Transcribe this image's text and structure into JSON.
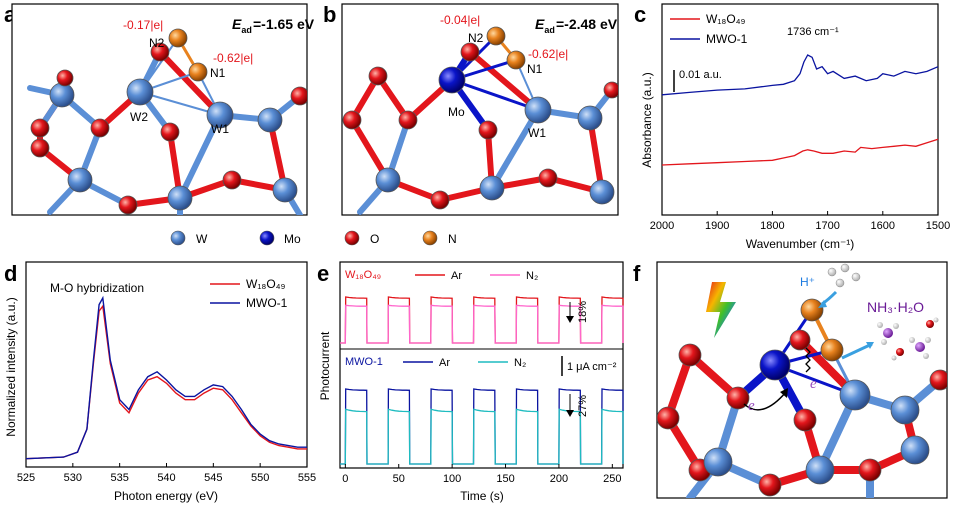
{
  "panels": {
    "a": {
      "letter": "a",
      "ead": "=-1.65 eV",
      "charge_n2": "-0.17|e|",
      "charge_n1": "-0.62|e|",
      "labels": {
        "n2": "N2",
        "n1": "N1",
        "w2": "W2",
        "w1": "W1"
      }
    },
    "b": {
      "letter": "b",
      "ead": "=-2.48 eV",
      "charge_n2": "-0.04|e|",
      "charge_n1": "-0.62|e|",
      "labels": {
        "n2": "N2",
        "n1": "N1",
        "mo": "Mo",
        "w1": "W1"
      }
    },
    "f": {
      "letter": "f",
      "h_plus": "H⁺",
      "nh3": "NH₃·H₂O",
      "e1": "e",
      "e2": "e"
    }
  },
  "atom_legend": [
    {
      "label": "W",
      "color": "#5b8fd6"
    },
    {
      "label": "Mo",
      "color": "#0a14c8"
    },
    {
      "label": "O",
      "color": "#e3161c"
    },
    {
      "label": "N",
      "color": "#e8821e"
    }
  ],
  "chart_data": [
    {
      "panel": "c",
      "letter": "c",
      "type": "line",
      "xlabel": "Wavenumber (cm⁻¹)",
      "ylabel": "Absorbance (a.u.)",
      "xlim": [
        2000,
        1500
      ],
      "x_ticks": [
        "2000",
        "1900",
        "1800",
        "1700",
        "1600",
        "1500"
      ],
      "annotation": "1736 cm⁻¹",
      "scale_bar": "0.01 a.u.",
      "legend": [
        "W₁₈O₄₉",
        "MWO-1"
      ],
      "series": [
        {
          "name": "W₁₈O₄₉",
          "color": "#e3161c",
          "x": [
            2000,
            1950,
            1900,
            1850,
            1800,
            1780,
            1760,
            1745,
            1736,
            1725,
            1710,
            1690,
            1670,
            1650,
            1640,
            1620,
            1600,
            1580,
            1560,
            1540,
            1520,
            1500
          ],
          "y": [
            0.0,
            0.0005,
            0.001,
            0.0015,
            0.002,
            0.003,
            0.004,
            0.006,
            0.0065,
            0.006,
            0.005,
            0.005,
            0.006,
            0.0055,
            0.0075,
            0.007,
            0.0075,
            0.008,
            0.0085,
            0.008,
            0.0095,
            0.011
          ]
        },
        {
          "name": "MWO-1",
          "color": "#0a14a0",
          "x": [
            2000,
            1950,
            1900,
            1850,
            1800,
            1780,
            1760,
            1750,
            1743,
            1736,
            1728,
            1720,
            1710,
            1700,
            1690,
            1670,
            1650,
            1630,
            1610,
            1600,
            1580,
            1560,
            1540,
            1520,
            1500
          ],
          "y": [
            0.03,
            0.031,
            0.032,
            0.0325,
            0.034,
            0.0345,
            0.036,
            0.039,
            0.044,
            0.047,
            0.046,
            0.041,
            0.042,
            0.039,
            0.04,
            0.037,
            0.038,
            0.036,
            0.037,
            0.039,
            0.038,
            0.04,
            0.039,
            0.04,
            0.042
          ]
        }
      ]
    },
    {
      "panel": "d",
      "letter": "d",
      "type": "line",
      "xlabel": "Photon energy (eV)",
      "ylabel": "Normalized intensity (a.u.)",
      "xlim": [
        525,
        555
      ],
      "x_ticks": [
        "525",
        "530",
        "535",
        "540",
        "545",
        "550",
        "555"
      ],
      "annotation": "M-O hybridization",
      "legend": [
        "W₁₈O₄₉",
        "MWO-1"
      ],
      "series": [
        {
          "name": "W₁₈O₄₉",
          "color": "#e3161c",
          "x": [
            525,
            529,
            530.5,
            531.5,
            532.2,
            532.8,
            533.2,
            534,
            535,
            536,
            537,
            538,
            539,
            540,
            541,
            542,
            543,
            544,
            545,
            546,
            547,
            548,
            549,
            550,
            551,
            552,
            553,
            554,
            555
          ],
          "y": [
            0.02,
            0.03,
            0.06,
            0.2,
            0.6,
            0.92,
            0.95,
            0.6,
            0.36,
            0.3,
            0.42,
            0.5,
            0.52,
            0.48,
            0.42,
            0.38,
            0.38,
            0.42,
            0.45,
            0.44,
            0.38,
            0.3,
            0.22,
            0.16,
            0.12,
            0.1,
            0.09,
            0.08,
            0.08
          ]
        },
        {
          "name": "MWO-1",
          "color": "#0a14a0",
          "x": [
            525,
            529,
            530.5,
            531.5,
            532.2,
            532.8,
            533.2,
            534,
            535,
            536,
            537,
            538,
            539,
            540,
            541,
            542,
            543,
            544,
            545,
            546,
            547,
            548,
            549,
            550,
            551,
            552,
            553,
            554,
            555
          ],
          "y": [
            0.02,
            0.03,
            0.06,
            0.2,
            0.62,
            0.96,
            1.0,
            0.62,
            0.38,
            0.32,
            0.44,
            0.52,
            0.55,
            0.5,
            0.44,
            0.4,
            0.4,
            0.44,
            0.47,
            0.46,
            0.4,
            0.32,
            0.23,
            0.17,
            0.13,
            0.11,
            0.1,
            0.09,
            0.09
          ]
        }
      ]
    },
    {
      "panel": "e",
      "letter": "e",
      "type": "line",
      "xlabel": "Time (s)",
      "ylabel": "Photocurrent",
      "xlim": [
        -5,
        260
      ],
      "x_ticks": [
        "0",
        "50",
        "100",
        "150",
        "200",
        "250"
      ],
      "scale_bar": "1 μA cm⁻²",
      "subpanels": [
        {
          "label": "W₁₈O₄₉",
          "label_color": "#e3161c",
          "drop": "18%",
          "series": [
            {
              "name": "Ar",
              "color": "#e3161c",
              "on_level": 1.0,
              "off_level": 0.0,
              "decay_to": 0.82
            },
            {
              "name": "N₂",
              "color": "#ff66cc",
              "on_level": 0.82,
              "off_level": 0.0,
              "decay_to": 0.82
            }
          ]
        },
        {
          "label": "MWO-1",
          "label_color": "#0a14a0",
          "drop": "27%",
          "series": [
            {
              "name": "Ar",
              "color": "#0a14a0",
              "on_level": 1.0,
              "off_level": 0.0,
              "decay_to": 0.88
            },
            {
              "name": "N₂",
              "color": "#1fbcc0",
              "on_level": 0.73,
              "off_level": 0.0,
              "decay_to": 0.7
            }
          ]
        }
      ],
      "cycle_period_s": 40,
      "on_start_s": [
        0,
        40,
        80,
        120,
        160,
        200,
        240
      ],
      "on_duration_s": 20
    }
  ]
}
